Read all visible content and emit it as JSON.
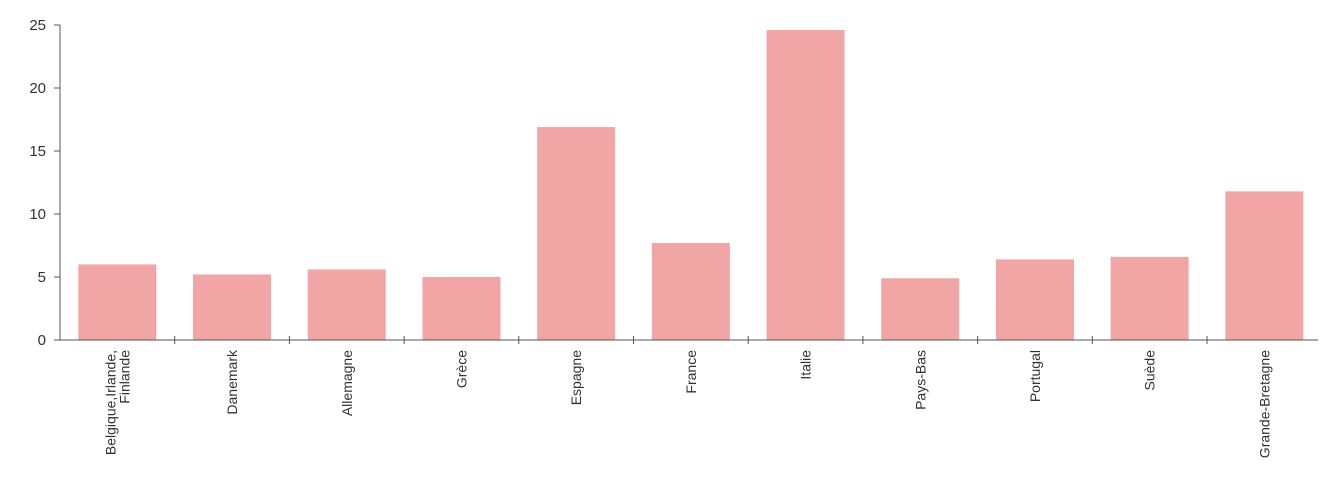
{
  "chart_data": {
    "type": "bar",
    "categories": [
      [
        "Belgique,Irlande,",
        "Finlande"
      ],
      [
        "Danemark"
      ],
      [
        "Allemagne"
      ],
      [
        "Grèce"
      ],
      [
        "Espagne"
      ],
      [
        "France"
      ],
      [
        "Italie"
      ],
      [
        "Pays-Bas"
      ],
      [
        "Portugal"
      ],
      [
        "Suède"
      ],
      [
        "Grande-Bretagne"
      ]
    ],
    "values": [
      6.0,
      5.2,
      5.6,
      5.0,
      16.9,
      7.7,
      24.6,
      4.9,
      6.4,
      6.6,
      11.8
    ],
    "ylim": [
      0,
      25
    ],
    "yticks": [
      "0",
      "5",
      "10",
      "15",
      "20",
      "25"
    ],
    "title": "",
    "xlabel": "",
    "ylabel": "",
    "bar_color": "#f2a5a5",
    "axis_color": "#555555",
    "grid": false
  }
}
